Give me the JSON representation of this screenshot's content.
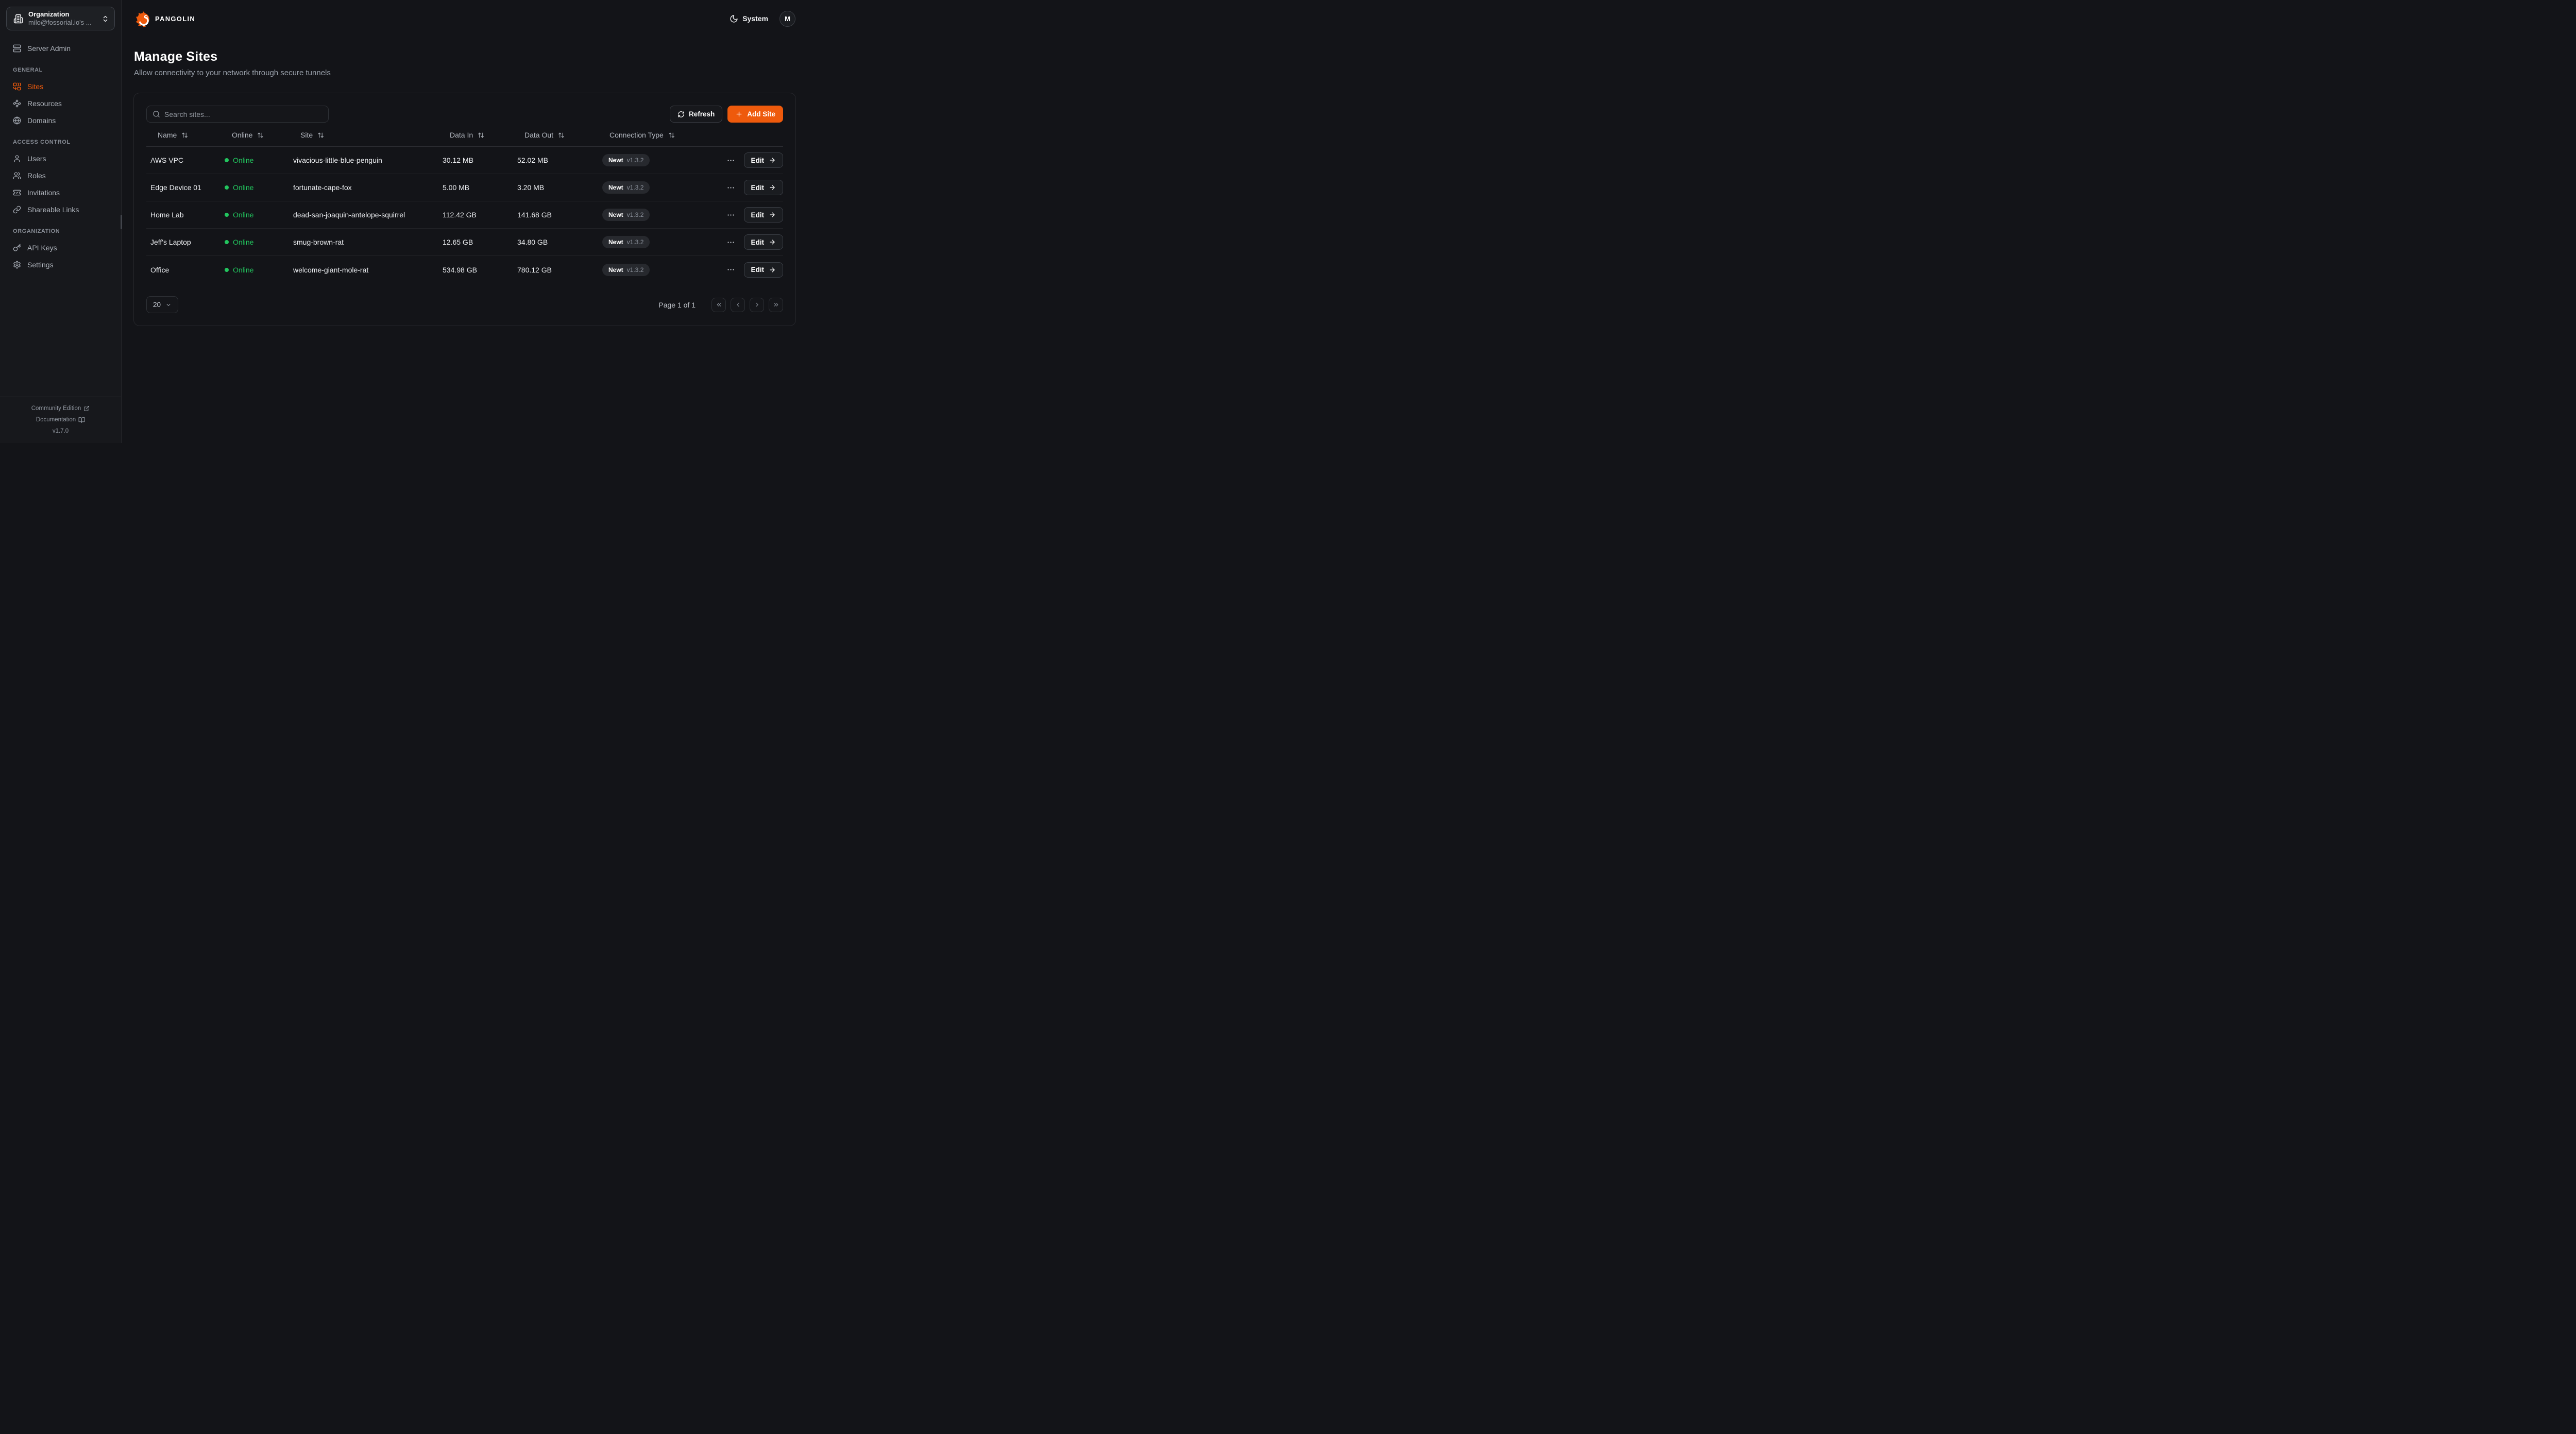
{
  "colors": {
    "accent": "#ee5a0c",
    "online_green": "#22c55e",
    "background": "#131418"
  },
  "header": {
    "brand": "PANGOLIN",
    "theme_label": "System",
    "theme_icon": "moon-icon",
    "avatar_initial": "M"
  },
  "sidebar": {
    "org": {
      "label": "Organization",
      "value": "milo@fossorial.io's ...",
      "icon": "building-icon"
    },
    "server_admin": {
      "label": "Server Admin",
      "icon": "server-icon"
    },
    "sections": [
      {
        "label": "GENERAL",
        "items": [
          {
            "label": "Sites",
            "icon": "combine-icon",
            "active": true
          },
          {
            "label": "Resources",
            "icon": "waypoints-icon",
            "active": false
          },
          {
            "label": "Domains",
            "icon": "globe-icon",
            "active": false
          }
        ]
      },
      {
        "label": "ACCESS CONTROL",
        "items": [
          {
            "label": "Users",
            "icon": "user-icon",
            "active": false
          },
          {
            "label": "Roles",
            "icon": "users-icon",
            "active": false
          },
          {
            "label": "Invitations",
            "icon": "ticket-check-icon",
            "active": false
          },
          {
            "label": "Shareable Links",
            "icon": "link-icon",
            "active": false
          }
        ]
      },
      {
        "label": "ORGANIZATION",
        "items": [
          {
            "label": "API Keys",
            "icon": "key-icon",
            "active": false
          },
          {
            "label": "Settings",
            "icon": "gear-icon",
            "active": false
          }
        ]
      }
    ],
    "footer": {
      "community": "Community Edition",
      "documentation": "Documentation",
      "version": "v1.7.0"
    }
  },
  "page": {
    "title": "Manage Sites",
    "subtitle": "Allow connectivity to your network through secure tunnels"
  },
  "toolbar": {
    "search_placeholder": "Search sites...",
    "refresh_label": "Refresh",
    "add_site_label": "Add Site"
  },
  "table": {
    "columns": [
      "Name",
      "Online",
      "Site",
      "Data In",
      "Data Out",
      "Connection Type"
    ],
    "edit_label": "Edit",
    "rows": [
      {
        "name": "AWS VPC",
        "status": "Online",
        "site": "vivacious-little-blue-penguin",
        "data_in": "30.12 MB",
        "data_out": "52.02 MB",
        "conn_type": "Newt",
        "conn_version": "v1.3.2"
      },
      {
        "name": "Edge Device 01",
        "status": "Online",
        "site": "fortunate-cape-fox",
        "data_in": "5.00 MB",
        "data_out": "3.20 MB",
        "conn_type": "Newt",
        "conn_version": "v1.3.2"
      },
      {
        "name": "Home Lab",
        "status": "Online",
        "site": "dead-san-joaquin-antelope-squirrel",
        "data_in": "112.42 GB",
        "data_out": "141.68 GB",
        "conn_type": "Newt",
        "conn_version": "v1.3.2"
      },
      {
        "name": "Jeff's Laptop",
        "status": "Online",
        "site": "smug-brown-rat",
        "data_in": "12.65 GB",
        "data_out": "34.80 GB",
        "conn_type": "Newt",
        "conn_version": "v1.3.2"
      },
      {
        "name": "Office",
        "status": "Online",
        "site": "welcome-giant-mole-rat",
        "data_in": "534.98 GB",
        "data_out": "780.12 GB",
        "conn_type": "Newt",
        "conn_version": "v1.3.2"
      }
    ]
  },
  "pagination": {
    "page_size": "20",
    "page_label": "Page 1 of 1"
  }
}
